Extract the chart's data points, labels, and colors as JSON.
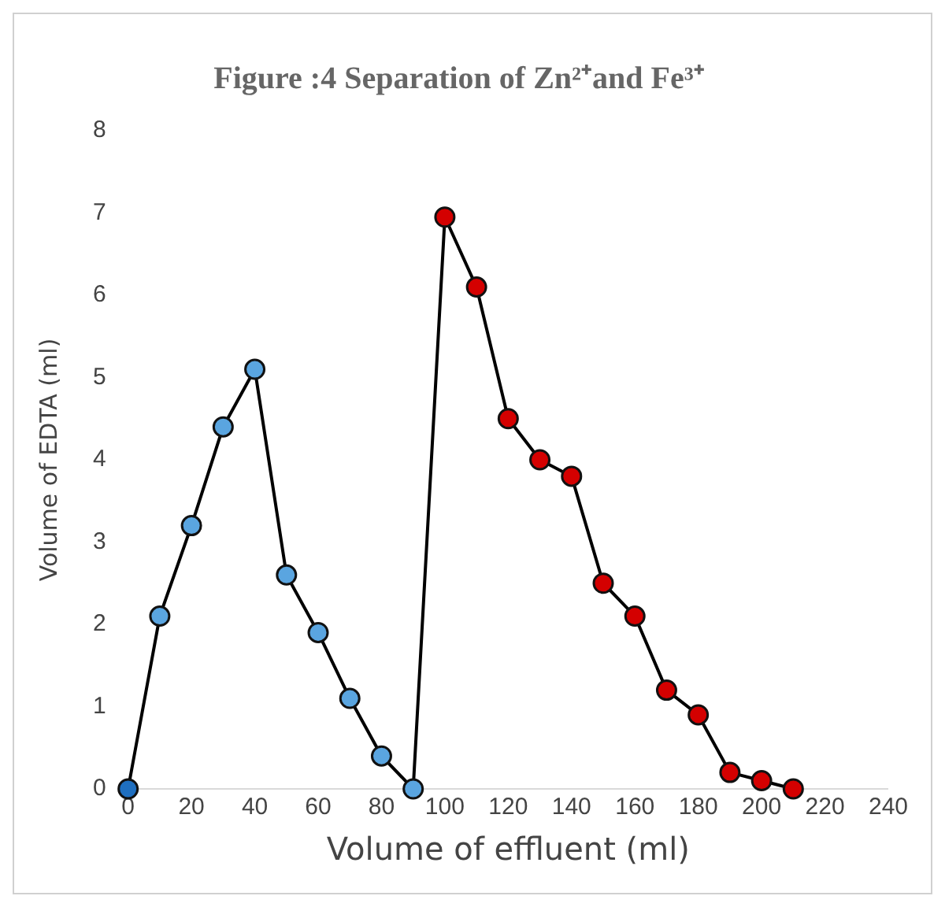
{
  "chart_data": {
    "type": "line",
    "title": "Figure :4 Separation of Zn²⁺and Fe³⁺",
    "xlabel": "Volume of effluent (ml)",
    "ylabel": "Volume of EDTA (ml)",
    "x": [
      0,
      10,
      20,
      30,
      40,
      50,
      60,
      70,
      80,
      90,
      100,
      110,
      120,
      130,
      140,
      150,
      160,
      170,
      180,
      190,
      200,
      210
    ],
    "series": [
      {
        "color": "#000000",
        "values": [
          0,
          2.1,
          3.2,
          4.4,
          5.1,
          2.6,
          1.9,
          1.1,
          0.4,
          0,
          6.95,
          6.1,
          4.5,
          4.0,
          3.8,
          2.5,
          2.1,
          1.2,
          0.9,
          0.2,
          0.1,
          0
        ],
        "colors": [
          "#1f6fc0",
          "#5aa5e0",
          "#5aa5e0",
          "#5aa5e0",
          "#5aa5e0",
          "#5aa5e0",
          "#5aa5e0",
          "#5aa5e0",
          "#5aa5e0",
          "#5aa5e0",
          "#d40000",
          "#d40000",
          "#d40000",
          "#d40000",
          "#d40000",
          "#d40000",
          "#d40000",
          "#d40000",
          "#d40000",
          "#d40000",
          "#d40000",
          "#d40000"
        ]
      }
    ],
    "xlim": [
      0,
      240
    ],
    "xticks": [
      0,
      20,
      40,
      60,
      80,
      100,
      120,
      140,
      160,
      180,
      200,
      220,
      240
    ],
    "ylim": [
      0,
      8
    ],
    "yticks": [
      0,
      1,
      2,
      3,
      4,
      5,
      6,
      7,
      8
    ],
    "grid": false,
    "legend": false,
    "marker": "circle",
    "line_style": "solid"
  }
}
